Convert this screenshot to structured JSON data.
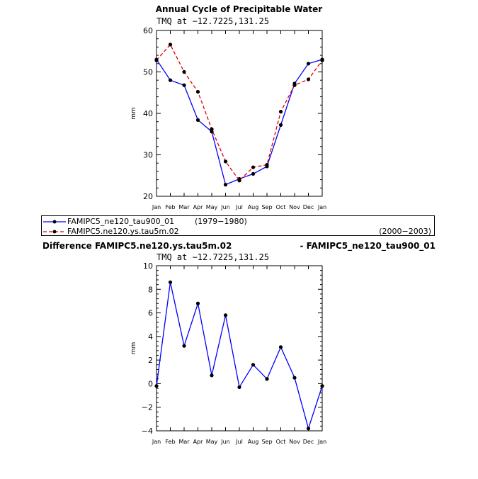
{
  "page_title": "Annual Cycle of Precipitable Water",
  "legend": [
    {
      "name": "FAMIPC5_ne120_tau900_01",
      "years": "(1979−1980)"
    },
    {
      "name": "FAMIPC5.ne120.ys.tau5m.02",
      "years": "(2000−2003)"
    }
  ],
  "difference_label": {
    "left": "Difference FAMIPC5.ne120.ys.tau5m.02",
    "right": "- FAMIPC5_ne120_tau900_01"
  },
  "colors": {
    "series_1": "#0000ff",
    "series_2": "#e00000",
    "difference": "#0000ff"
  },
  "chart_data": [
    {
      "type": "line",
      "subtitle": "TMQ at −12.7225,131.25",
      "ylabel": "mm",
      "categories": [
        "Jan",
        "Feb",
        "Mar",
        "Apr",
        "May",
        "Jun",
        "Jul",
        "Aug",
        "Sep",
        "Oct",
        "Nov",
        "Dec",
        "Jan"
      ],
      "ylim": [
        20,
        60
      ],
      "yticks": [
        20,
        30,
        40,
        50,
        60
      ],
      "series": [
        {
          "name": "FAMIPC5_ne120_tau900_01",
          "style": "solid",
          "values": [
            53.0,
            48.0,
            46.8,
            38.4,
            35.6,
            22.8,
            24.2,
            25.4,
            27.2,
            37.2,
            47.2,
            52.0,
            53.0
          ]
        },
        {
          "name": "FAMIPC5.ne120.ys.tau5m.02",
          "style": "dashed",
          "values": [
            52.8,
            56.6,
            50.0,
            45.2,
            36.2,
            28.4,
            23.8,
            27.0,
            27.6,
            40.4,
            46.8,
            48.2,
            52.8
          ]
        }
      ]
    },
    {
      "type": "line",
      "subtitle": "TMQ at −12.7225,131.25",
      "ylabel": "mm",
      "categories": [
        "Jan",
        "Feb",
        "Mar",
        "Apr",
        "May",
        "Jun",
        "Jul",
        "Aug",
        "Sep",
        "Oct",
        "Nov",
        "Dec",
        "Jan"
      ],
      "ylim": [
        -4,
        10
      ],
      "yticks": [
        -4,
        -2,
        0,
        2,
        4,
        6,
        8,
        10
      ],
      "series": [
        {
          "name": "",
          "style": "solid",
          "values": [
            -0.2,
            8.6,
            3.2,
            6.8,
            0.7,
            5.8,
            -0.3,
            1.6,
            0.4,
            3.1,
            0.5,
            -3.8,
            -0.2
          ]
        }
      ]
    }
  ]
}
